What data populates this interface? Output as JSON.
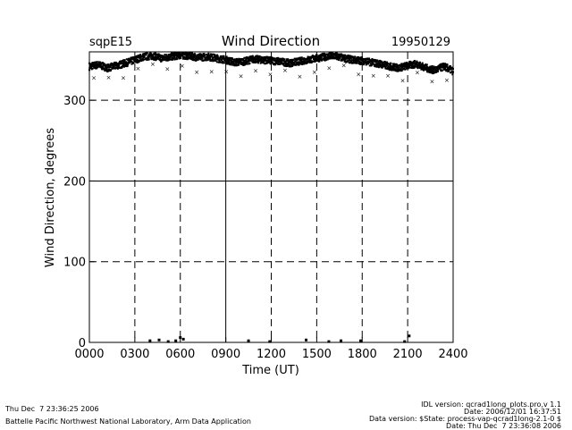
{
  "chart_data": {
    "type": "scatter",
    "title": "Wind Direction",
    "site": "sqpE15",
    "date": "19950129",
    "xlabel": "Time (UT)",
    "ylabel": "Wind Direction, degrees",
    "xlim": [
      0,
      2400
    ],
    "ylim": [
      0,
      360
    ],
    "xticks": [
      "0000",
      "0300",
      "0600",
      "0900",
      "1200",
      "1500",
      "1800",
      "2100",
      "2400"
    ],
    "xtick_values": [
      0,
      300,
      600,
      900,
      1200,
      1500,
      1800,
      2100,
      2400
    ],
    "yticks": [
      "0",
      "100",
      "200",
      "300"
    ],
    "ytick_values": [
      0,
      100,
      200,
      300
    ],
    "grid": "dashed",
    "series": [
      {
        "x": [
          0,
          60,
          120,
          180,
          240,
          300,
          360,
          420,
          480,
          540,
          600,
          660,
          720,
          780,
          840,
          900,
          960,
          1020,
          1080,
          1140,
          1200,
          1260,
          1320,
          1380,
          1440,
          1500,
          1560,
          1620,
          1680,
          1740,
          1800,
          1860,
          1920,
          1980,
          2040,
          2100,
          2160,
          2220,
          2280,
          2340,
          2400
        ],
        "y": [
          342,
          344,
          340,
          343,
          346,
          350,
          354,
          355,
          352,
          354,
          356,
          355,
          353,
          354,
          352,
          350,
          347,
          348,
          351,
          350,
          349,
          348,
          346,
          348,
          350,
          352,
          354,
          355,
          352,
          350,
          349,
          347,
          345,
          342,
          340,
          343,
          345,
          340,
          337,
          342,
          336
        ],
        "low_x": [
          400,
          460,
          520,
          570,
          600,
          620,
          1050,
          1190,
          1430,
          1580,
          1660,
          1790,
          2080,
          2110
        ],
        "low_y": [
          2,
          3,
          1,
          2,
          6,
          4,
          2,
          1,
          3,
          1,
          2,
          2,
          1,
          8
        ]
      }
    ]
  },
  "footer": {
    "left_line1": "Thu Dec  7 23:36:25 2006",
    "left_line2": "Battelle Pacific Northwest National Laboratory, Arm Data Application",
    "right_line1": "IDL version: qcrad1long_plots.pro,v 1.1",
    "right_line2": "Date: 2006/12/01 16:37:51",
    "right_line3": "Data version: $State: process-vap-qcrad1long-2.1-0 $",
    "right_line4": "Date: Thu Dec  7 23:36:08 2006"
  }
}
